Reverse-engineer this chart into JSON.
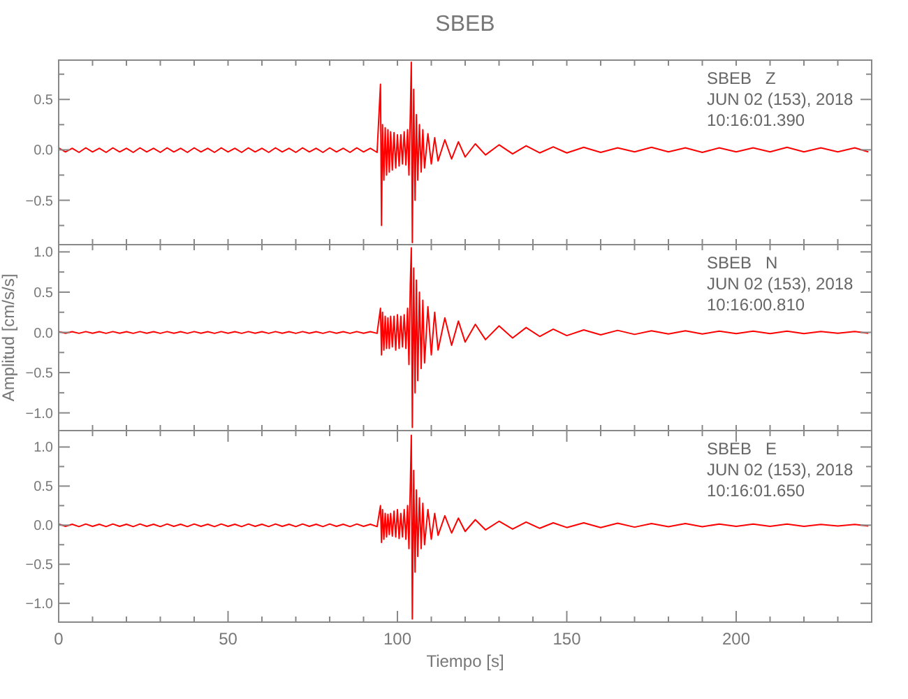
{
  "chart_data": [
    {
      "type": "line",
      "title": "SBEB",
      "tick_labels": "y",
      "annotations": [
        "SBEB   Z\nJUN 02 (153), 2018\n10:16:01.390"
      ],
      "xlim": [
        0,
        240
      ],
      "ylim": [
        -0.94,
        0.89
      ],
      "xticks": [
        {
          "value": 0,
          "label": null
        },
        {
          "value": 10,
          "label": null
        },
        {
          "value": 20,
          "label": null
        },
        {
          "value": 30,
          "label": null
        },
        {
          "value": 40,
          "label": null
        },
        {
          "value": 50,
          "label": null
        },
        {
          "value": 60,
          "label": null
        },
        {
          "value": 70,
          "label": null
        },
        {
          "value": 80,
          "label": null
        },
        {
          "value": 90,
          "label": null
        },
        {
          "value": 100,
          "label": null
        },
        {
          "value": 110,
          "label": null
        },
        {
          "value": 120,
          "label": null
        },
        {
          "value": 130,
          "label": null
        },
        {
          "value": 140,
          "label": null
        },
        {
          "value": 150,
          "label": null
        },
        {
          "value": 160,
          "label": null
        },
        {
          "value": 170,
          "label": null
        },
        {
          "value": 180,
          "label": null
        },
        {
          "value": 190,
          "label": null
        },
        {
          "value": 200,
          "label": null
        },
        {
          "value": 210,
          "label": null
        },
        {
          "value": 220,
          "label": null
        },
        {
          "value": 230,
          "label": null
        }
      ],
      "yticks": [
        {
          "value": -0.75,
          "label": null
        },
        {
          "value": -0.5,
          "label": "−0.5"
        },
        {
          "value": -0.25,
          "label": null
        },
        {
          "value": 0,
          "label": "0.0"
        },
        {
          "value": 0.25,
          "label": null
        },
        {
          "value": 0.5,
          "label": "0.5"
        },
        {
          "value": 0.75,
          "label": null
        }
      ],
      "x": [
        0,
        2,
        4,
        6,
        8,
        10,
        12,
        14,
        16,
        18,
        20,
        22,
        24,
        26,
        28,
        30,
        32,
        34,
        36,
        38,
        40,
        42,
        44,
        46,
        48,
        50,
        52,
        54,
        56,
        58,
        60,
        62,
        64,
        66,
        68,
        70,
        72,
        74,
        76,
        78,
        80,
        82,
        84,
        86,
        88,
        90,
        92,
        94,
        95.0,
        95.3,
        95.6,
        96.0,
        96.4,
        96.8,
        97.2,
        97.6,
        98.0,
        98.5,
        99.0,
        99.5,
        100,
        100.5,
        101,
        101.5,
        102,
        102.5,
        103,
        103.4,
        103.8,
        104.1,
        104.4,
        104.8,
        105.2,
        105.6,
        106,
        106.5,
        107,
        107.5,
        108,
        109,
        110,
        111,
        112,
        114,
        116,
        118,
        120,
        123,
        126,
        130,
        134,
        138,
        142,
        146,
        150,
        155,
        160,
        165,
        170,
        175,
        180,
        185,
        190,
        195,
        200,
        205,
        210,
        215,
        220,
        225,
        230,
        235,
        239
      ],
      "series": [
        {
          "color": "#ff0000",
          "values": [
            0.02,
            -0.02,
            0.015,
            -0.025,
            0.02,
            -0.02,
            0.015,
            -0.025,
            0.02,
            -0.02,
            0.015,
            -0.025,
            0.02,
            -0.02,
            0.015,
            -0.025,
            0.02,
            -0.02,
            0.015,
            -0.025,
            0.02,
            -0.02,
            0.015,
            -0.025,
            0.02,
            -0.02,
            0.015,
            -0.025,
            0.02,
            -0.02,
            0.015,
            -0.025,
            0.02,
            -0.02,
            0.015,
            -0.025,
            0.02,
            -0.02,
            0.015,
            -0.025,
            0.02,
            -0.02,
            0.015,
            -0.025,
            0.02,
            -0.02,
            0.015,
            -0.025,
            0.65,
            -0.75,
            0.25,
            -0.3,
            0.22,
            -0.25,
            0.2,
            -0.22,
            0.18,
            -0.2,
            0.17,
            -0.18,
            0.15,
            -0.16,
            0.15,
            -0.14,
            0.18,
            -0.15,
            0.2,
            -0.25,
            0.35,
            0.87,
            -0.92,
            0.6,
            -0.5,
            0.35,
            -0.3,
            0.25,
            -0.22,
            0.2,
            -0.18,
            0.16,
            -0.14,
            0.12,
            -0.11,
            0.1,
            -0.09,
            0.08,
            -0.07,
            0.06,
            -0.05,
            0.05,
            -0.04,
            0.04,
            -0.03,
            0.03,
            -0.03,
            0.025,
            -0.025,
            0.02,
            -0.02,
            0.025,
            -0.02,
            0.02,
            -0.025,
            0.02,
            -0.02,
            0.02,
            -0.02,
            0.025,
            -0.02,
            0.02,
            -0.02,
            0.02,
            -0.02
          ]
        }
      ]
    },
    {
      "type": "line",
      "ylabel": "Amplitud [cm/s/s]",
      "tick_labels": "y",
      "annotations": [
        "SBEB   N\nJUN 02 (153), 2018\n10:16:00.810"
      ],
      "xlim": [
        0,
        240
      ],
      "ylim": [
        -1.22,
        1.09
      ],
      "xticks": [
        {
          "value": 0,
          "label": null
        },
        {
          "value": 10,
          "label": null
        },
        {
          "value": 20,
          "label": null
        },
        {
          "value": 30,
          "label": null
        },
        {
          "value": 40,
          "label": null
        },
        {
          "value": 50,
          "label": null
        },
        {
          "value": 60,
          "label": null
        },
        {
          "value": 70,
          "label": null
        },
        {
          "value": 80,
          "label": null
        },
        {
          "value": 90,
          "label": null
        },
        {
          "value": 100,
          "label": null
        },
        {
          "value": 110,
          "label": null
        },
        {
          "value": 120,
          "label": null
        },
        {
          "value": 130,
          "label": null
        },
        {
          "value": 140,
          "label": null
        },
        {
          "value": 150,
          "label": null
        },
        {
          "value": 160,
          "label": null
        },
        {
          "value": 170,
          "label": null
        },
        {
          "value": 180,
          "label": null
        },
        {
          "value": 190,
          "label": null
        },
        {
          "value": 200,
          "label": null
        },
        {
          "value": 210,
          "label": null
        },
        {
          "value": 220,
          "label": null
        },
        {
          "value": 230,
          "label": null
        }
      ],
      "yticks": [
        {
          "value": -1,
          "label": "−1.0"
        },
        {
          "value": -0.75,
          "label": null
        },
        {
          "value": -0.5,
          "label": "−0.5"
        },
        {
          "value": -0.25,
          "label": null
        },
        {
          "value": 0,
          "label": "0.0"
        },
        {
          "value": 0.25,
          "label": null
        },
        {
          "value": 0.5,
          "label": "0.5"
        },
        {
          "value": 0.75,
          "label": null
        },
        {
          "value": 1,
          "label": "1.0"
        }
      ],
      "x": [
        0,
        2,
        4,
        6,
        8,
        10,
        12,
        14,
        16,
        18,
        20,
        22,
        24,
        26,
        28,
        30,
        32,
        34,
        36,
        38,
        40,
        42,
        44,
        46,
        48,
        50,
        52,
        54,
        56,
        58,
        60,
        62,
        64,
        66,
        68,
        70,
        72,
        74,
        76,
        78,
        80,
        82,
        84,
        86,
        88,
        90,
        92,
        94,
        95.0,
        95.3,
        95.6,
        96.0,
        96.4,
        96.8,
        97.2,
        97.6,
        98.0,
        98.5,
        99.0,
        99.5,
        100,
        100.5,
        101,
        101.5,
        102,
        102.5,
        103,
        103.4,
        103.8,
        104.1,
        104.4,
        104.8,
        105.2,
        105.6,
        106,
        106.5,
        107,
        107.5,
        108,
        109,
        110,
        111,
        112,
        114,
        116,
        118,
        120,
        123,
        126,
        130,
        134,
        138,
        142,
        146,
        150,
        155,
        160,
        165,
        170,
        175,
        180,
        185,
        190,
        195,
        200,
        205,
        210,
        215,
        220,
        225,
        230,
        235,
        239
      ],
      "series": [
        {
          "color": "#ff0000",
          "values": [
            0.01,
            -0.01,
            0.008,
            -0.012,
            0.01,
            -0.01,
            0.008,
            -0.012,
            0.01,
            -0.01,
            0.008,
            -0.012,
            0.01,
            -0.01,
            0.008,
            -0.012,
            0.01,
            -0.01,
            0.008,
            -0.012,
            0.01,
            -0.01,
            0.008,
            -0.012,
            0.01,
            -0.01,
            0.008,
            -0.012,
            0.01,
            -0.01,
            0.008,
            -0.012,
            0.01,
            -0.01,
            0.008,
            -0.012,
            0.01,
            -0.01,
            0.008,
            -0.012,
            0.01,
            -0.01,
            0.008,
            -0.012,
            0.01,
            -0.01,
            0.008,
            -0.012,
            0.3,
            -0.28,
            0.25,
            -0.22,
            0.2,
            -0.2,
            0.18,
            -0.2,
            0.2,
            -0.18,
            0.2,
            -0.22,
            0.22,
            -0.2,
            0.2,
            -0.18,
            0.22,
            -0.2,
            0.3,
            -0.4,
            0.6,
            1.05,
            -1.18,
            0.8,
            -0.75,
            0.65,
            -0.6,
            0.5,
            -0.45,
            0.4,
            -0.38,
            0.32,
            -0.28,
            0.25,
            -0.22,
            0.18,
            -0.16,
            0.14,
            -0.12,
            0.1,
            -0.09,
            0.08,
            -0.07,
            0.06,
            -0.05,
            0.04,
            -0.04,
            0.03,
            -0.03,
            0.025,
            -0.025,
            0.02,
            -0.02,
            0.02,
            -0.02,
            0.015,
            -0.015,
            0.015,
            -0.015,
            0.015,
            -0.015,
            0.01,
            -0.01,
            0.01,
            -0.01
          ]
        }
      ]
    },
    {
      "type": "line",
      "xlabel": "Tiempo [s]",
      "annotations": [
        "SBEB   E\nJUN 02 (153), 2018\n10:16:01.650"
      ],
      "xlim": [
        0,
        240
      ],
      "ylim": [
        -1.24,
        1.21
      ],
      "xticks": [
        0,
        {
          "value": 10,
          "label": null
        },
        {
          "value": 20,
          "label": null
        },
        {
          "value": 30,
          "label": null
        },
        {
          "value": 40,
          "label": null
        },
        50,
        {
          "value": 60,
          "label": null
        },
        {
          "value": 70,
          "label": null
        },
        {
          "value": 80,
          "label": null
        },
        {
          "value": 90,
          "label": null
        },
        100,
        {
          "value": 110,
          "label": null
        },
        {
          "value": 120,
          "label": null
        },
        {
          "value": 130,
          "label": null
        },
        {
          "value": 140,
          "label": null
        },
        150,
        {
          "value": 160,
          "label": null
        },
        {
          "value": 170,
          "label": null
        },
        {
          "value": 180,
          "label": null
        },
        {
          "value": 190,
          "label": null
        },
        200,
        {
          "value": 210,
          "label": null
        },
        {
          "value": 220,
          "label": null
        },
        {
          "value": 230,
          "label": null
        }
      ],
      "yticks": [
        {
          "value": -1,
          "label": "−1.0"
        },
        {
          "value": -0.75,
          "label": null
        },
        {
          "value": -0.5,
          "label": "−0.5"
        },
        {
          "value": -0.25,
          "label": null
        },
        {
          "value": 0,
          "label": "0.0"
        },
        {
          "value": 0.25,
          "label": null
        },
        {
          "value": 0.5,
          "label": "0.5"
        },
        {
          "value": 0.75,
          "label": null
        },
        {
          "value": 1,
          "label": "1.0"
        }
      ],
      "x": [
        0,
        2,
        4,
        6,
        8,
        10,
        12,
        14,
        16,
        18,
        20,
        22,
        24,
        26,
        28,
        30,
        32,
        34,
        36,
        38,
        40,
        42,
        44,
        46,
        48,
        50,
        52,
        54,
        56,
        58,
        60,
        62,
        64,
        66,
        68,
        70,
        72,
        74,
        76,
        78,
        80,
        82,
        84,
        86,
        88,
        90,
        92,
        94,
        95.0,
        95.3,
        95.6,
        96.0,
        96.4,
        96.8,
        97.2,
        97.6,
        98.0,
        98.5,
        99.0,
        99.5,
        100,
        100.5,
        101,
        101.5,
        102,
        102.5,
        103,
        103.4,
        103.8,
        104.1,
        104.4,
        104.8,
        105.2,
        105.6,
        106,
        106.5,
        107,
        107.5,
        108,
        109,
        110,
        111,
        112,
        114,
        116,
        118,
        120,
        123,
        126,
        130,
        134,
        138,
        142,
        146,
        150,
        155,
        160,
        165,
        170,
        175,
        180,
        185,
        190,
        195,
        200,
        205,
        210,
        215,
        220,
        225,
        230,
        235,
        239
      ],
      "series": [
        {
          "color": "#ff0000",
          "values": [
            0.015,
            -0.015,
            0.012,
            -0.018,
            0.015,
            -0.015,
            0.012,
            -0.018,
            0.015,
            -0.015,
            0.012,
            -0.018,
            0.015,
            -0.015,
            0.012,
            -0.018,
            0.015,
            -0.015,
            0.012,
            -0.018,
            0.015,
            -0.015,
            0.012,
            -0.018,
            0.015,
            -0.015,
            0.012,
            -0.018,
            0.015,
            -0.015,
            0.012,
            -0.018,
            0.015,
            -0.015,
            0.012,
            -0.018,
            0.015,
            -0.015,
            0.012,
            -0.018,
            0.015,
            -0.015,
            0.012,
            -0.018,
            0.015,
            -0.015,
            0.012,
            -0.018,
            0.25,
            -0.22,
            0.2,
            -0.18,
            0.15,
            -0.15,
            0.14,
            -0.12,
            0.15,
            -0.14,
            0.18,
            -0.15,
            0.2,
            -0.17,
            0.15,
            -0.15,
            0.2,
            -0.18,
            0.25,
            -0.3,
            0.5,
            1.15,
            -1.2,
            0.7,
            -0.6,
            0.45,
            -0.4,
            0.35,
            -0.3,
            0.28,
            -0.25,
            0.2,
            -0.18,
            0.15,
            -0.13,
            0.12,
            -0.1,
            0.09,
            -0.08,
            0.07,
            -0.06,
            0.05,
            -0.05,
            0.04,
            -0.04,
            0.03,
            -0.03,
            0.03,
            -0.03,
            0.025,
            -0.025,
            0.02,
            -0.02,
            0.02,
            -0.02,
            0.015,
            -0.015,
            0.015,
            -0.015,
            0.015,
            -0.015,
            0.01,
            -0.01,
            0.01,
            -0.01
          ]
        }
      ]
    }
  ]
}
